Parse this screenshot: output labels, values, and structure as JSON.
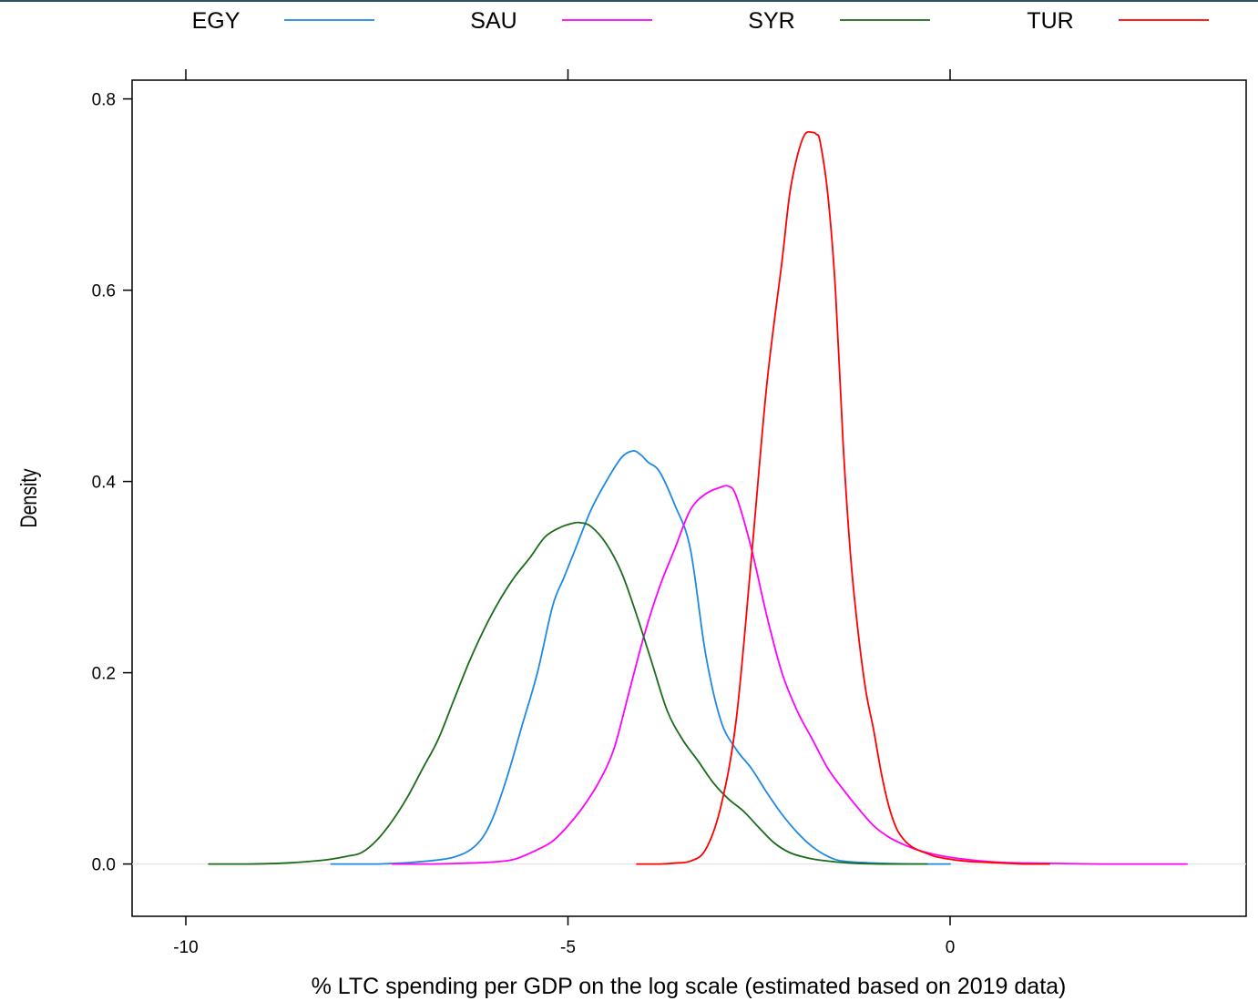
{
  "chart_data": {
    "type": "line",
    "title": "",
    "xlabel": "% LTC spending per GDP on the log scale (estimated based on 2019 data)",
    "ylabel": "Density",
    "xlim": [
      -11.4,
      11.4
    ],
    "ylim": [
      -0.053,
      0.84
    ],
    "x_ticks": [
      -10,
      -5,
      0
    ],
    "x_tick_labels": [
      "-10",
      "-5",
      "0"
    ],
    "y_ticks": [
      0.0,
      0.2,
      0.4,
      0.6,
      0.8
    ],
    "y_tick_labels": [
      "0.0",
      "0.2",
      "0.4",
      "0.6",
      "0.8"
    ],
    "grid": false,
    "baseline": 0,
    "legend_position": "top",
    "series": [
      {
        "name": "EGY",
        "color": "#1E88E5",
        "x": [
          -8.1,
          -7.5,
          -7.0,
          -6.5,
          -6.2,
          -6.0,
          -5.8,
          -5.6,
          -5.4,
          -5.2,
          -5.05,
          -4.9,
          -4.7,
          -4.5,
          -4.3,
          -4.15,
          -4.05,
          -3.95,
          -3.8,
          -3.6,
          -3.4,
          -3.2,
          -3.0,
          -2.8,
          -2.6,
          -2.4,
          -2.2,
          -2.0,
          -1.8,
          -1.6,
          -1.4,
          -1.0,
          -0.5,
          0.0
        ],
        "y": [
          0.0,
          0.0,
          0.002,
          0.007,
          0.02,
          0.045,
          0.09,
          0.145,
          0.2,
          0.27,
          0.3,
          0.33,
          0.37,
          0.4,
          0.425,
          0.432,
          0.428,
          0.42,
          0.41,
          0.375,
          0.33,
          0.22,
          0.15,
          0.12,
          0.1,
          0.075,
          0.052,
          0.033,
          0.018,
          0.008,
          0.003,
          0.001,
          0.0,
          0.0
        ]
      },
      {
        "name": "SAU",
        "color": "#FF00FF",
        "x": [
          -7.3,
          -6.8,
          -6.3,
          -6.0,
          -5.7,
          -5.4,
          -5.2,
          -5.0,
          -4.8,
          -4.6,
          -4.4,
          -4.2,
          -4.0,
          -3.8,
          -3.6,
          -3.4,
          -3.2,
          -3.0,
          -2.9,
          -2.8,
          -2.6,
          -2.4,
          -2.2,
          -2.0,
          -1.8,
          -1.6,
          -1.4,
          -1.2,
          -1.0,
          -0.8,
          -0.6,
          -0.4,
          -0.2,
          0.0,
          0.3,
          0.6,
          1.0,
          2.0,
          3.1
        ],
        "y": [
          0.0,
          0.0,
          0.001,
          0.002,
          0.005,
          0.015,
          0.024,
          0.04,
          0.06,
          0.085,
          0.12,
          0.18,
          0.24,
          0.29,
          0.33,
          0.37,
          0.387,
          0.394,
          0.395,
          0.385,
          0.33,
          0.26,
          0.2,
          0.16,
          0.13,
          0.1,
          0.078,
          0.058,
          0.04,
          0.028,
          0.02,
          0.014,
          0.01,
          0.007,
          0.004,
          0.002,
          0.001,
          0.0,
          0.0
        ]
      },
      {
        "name": "SYR",
        "color": "#1B6B1B",
        "x": [
          -9.7,
          -9.2,
          -8.7,
          -8.2,
          -7.9,
          -7.7,
          -7.5,
          -7.3,
          -7.1,
          -6.9,
          -6.7,
          -6.5,
          -6.3,
          -6.1,
          -5.9,
          -5.7,
          -5.5,
          -5.3,
          -5.1,
          -4.95,
          -4.85,
          -4.7,
          -4.5,
          -4.3,
          -4.1,
          -3.9,
          -3.7,
          -3.5,
          -3.3,
          -3.1,
          -2.9,
          -2.7,
          -2.5,
          -2.3,
          -2.1,
          -1.9,
          -1.7,
          -1.3,
          -0.8,
          -0.3
        ],
        "y": [
          0.0,
          0.0,
          0.001,
          0.004,
          0.008,
          0.012,
          0.025,
          0.045,
          0.07,
          0.1,
          0.13,
          0.17,
          0.21,
          0.245,
          0.275,
          0.3,
          0.32,
          0.342,
          0.352,
          0.356,
          0.357,
          0.353,
          0.335,
          0.305,
          0.26,
          0.21,
          0.16,
          0.13,
          0.108,
          0.085,
          0.068,
          0.055,
          0.038,
          0.022,
          0.012,
          0.007,
          0.004,
          0.001,
          0.0,
          0.0
        ]
      },
      {
        "name": "TUR",
        "color": "#FF0000",
        "x": [
          -4.1,
          -3.8,
          -3.6,
          -3.4,
          -3.2,
          -3.0,
          -2.8,
          -2.6,
          -2.4,
          -2.2,
          -2.1,
          -2.0,
          -1.9,
          -1.8,
          -1.75,
          -1.7,
          -1.6,
          -1.5,
          -1.4,
          -1.3,
          -1.2,
          -1.1,
          -1.0,
          -0.9,
          -0.8,
          -0.7,
          -0.6,
          -0.5,
          -0.4,
          -0.3,
          -0.2,
          0.0,
          0.2,
          0.4,
          0.7,
          1.0,
          1.3
        ],
        "y": [
          0.0,
          0.0,
          0.001,
          0.003,
          0.015,
          0.06,
          0.15,
          0.32,
          0.5,
          0.63,
          0.7,
          0.74,
          0.763,
          0.765,
          0.763,
          0.755,
          0.7,
          0.6,
          0.44,
          0.32,
          0.24,
          0.18,
          0.14,
          0.095,
          0.06,
          0.037,
          0.025,
          0.018,
          0.014,
          0.011,
          0.008,
          0.005,
          0.003,
          0.002,
          0.001,
          0.0,
          0.0
        ]
      }
    ]
  }
}
